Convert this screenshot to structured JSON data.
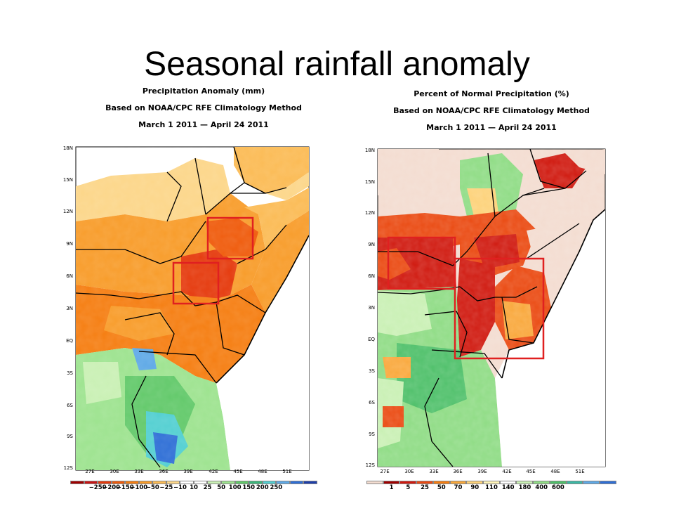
{
  "slide": {
    "title": "Seasonal rainfall anomaly"
  },
  "left_panel": {
    "title_lines": [
      "Precipitation Anomaly (mm)",
      "Based on NOAA/CPC RFE Climatology Method",
      "March 1 2011 — April 24 2011"
    ],
    "lat_ticks": [
      "18N",
      "15N",
      "12N",
      "9N",
      "6N",
      "3N",
      "EQ",
      "3S",
      "6S",
      "9S",
      "12S"
    ],
    "lon_ticks": [
      "27E",
      "30E",
      "33E",
      "36E",
      "39E",
      "42E",
      "45E",
      "48E",
      "51E"
    ],
    "legend": {
      "colors": [
        "#a00000",
        "#c81414",
        "#e53a0d",
        "#ef5b0c",
        "#f57e12",
        "#f89c2a",
        "#fbbb55",
        "#fcd689",
        "#ffffff",
        "#ffffff",
        "#c9f0b4",
        "#9de38f",
        "#62c96a",
        "#3db87c",
        "#52cfd1",
        "#5fa9e6",
        "#2f6fd6",
        "#1e3faa"
      ],
      "labels": [
        "−250",
        "−200",
        "−150",
        "−100",
        "−50",
        "−25",
        "−10",
        "10",
        "25",
        "50",
        "100",
        "150",
        "200",
        "250"
      ]
    }
  },
  "right_panel": {
    "title_lines": [
      "Percent of Normal Precipitation (%)",
      "Based on NOAA/CPC RFE Climatology Method",
      "March 1 2011 — April 24 2011"
    ],
    "lat_ticks": [
      "18N",
      "15N",
      "12N",
      "9N",
      "6N",
      "3N",
      "EQ",
      "3S",
      "6S",
      "9S",
      "12S"
    ],
    "lon_ticks": [
      "27E",
      "30E",
      "33E",
      "36E",
      "39E",
      "42E",
      "45E",
      "48E",
      "51E"
    ],
    "legend": {
      "colors": [
        "#f3dcd0",
        "#a00000",
        "#d01a10",
        "#ea4a12",
        "#f57e12",
        "#f9a83c",
        "#fdd27a",
        "#fff4b8",
        "#ffffff",
        "#c9f0b4",
        "#8fdc85",
        "#4fc06a",
        "#3cb8a5",
        "#5fa9e6",
        "#2f6fd6"
      ],
      "labels": [
        "1",
        "5",
        "25",
        "50",
        "70",
        "90",
        "110",
        "140",
        "180",
        "400",
        "600"
      ]
    }
  }
}
